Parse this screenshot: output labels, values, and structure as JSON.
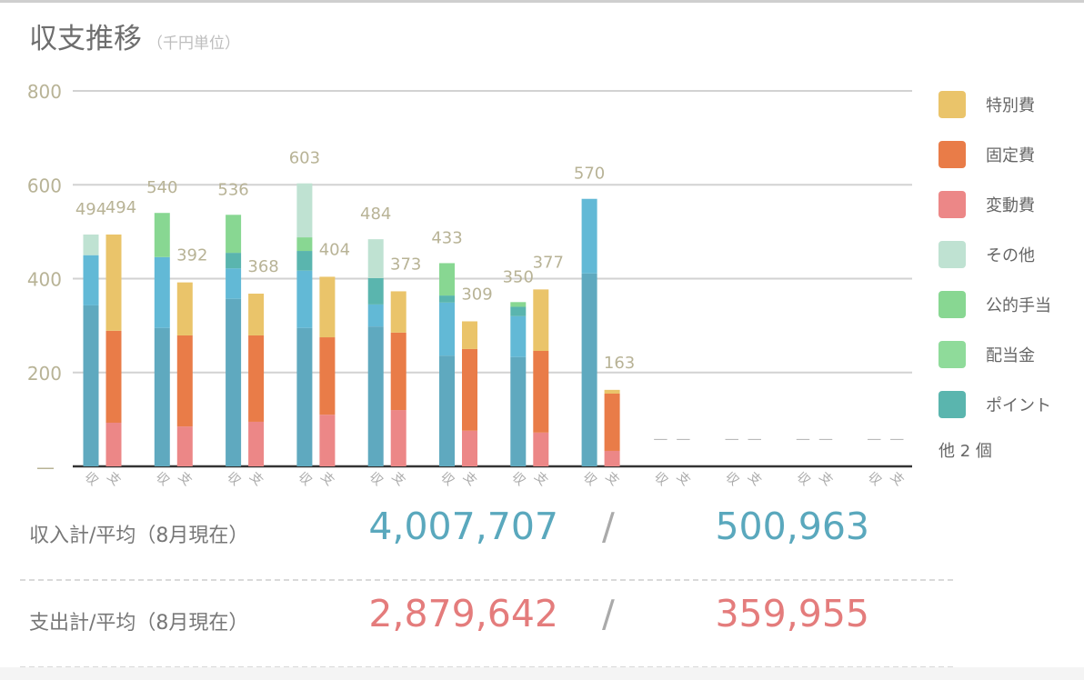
{
  "header": {
    "title": "収支推移",
    "unit": "（千円単位）"
  },
  "chart_data": {
    "type": "bar",
    "stacked": true,
    "ylim": [
      0,
      800
    ],
    "yticks": [
      "800",
      "600",
      "400",
      "200",
      "—"
    ],
    "ytick_values": [
      800,
      600,
      400,
      200,
      0
    ],
    "grid": true,
    "legend_position": "right",
    "category_labels": [
      "収",
      "支"
    ],
    "months_with_data": 8,
    "months_total": 12,
    "income_totals": [
      494,
      540,
      536,
      603,
      484,
      433,
      350,
      570
    ],
    "expense_totals": [
      494,
      392,
      368,
      404,
      373,
      309,
      377,
      163
    ],
    "income_series": [
      {
        "name": "",
        "color": "#5fa9bf",
        "values": [
          343,
          295,
          357,
          295,
          298,
          236,
          233,
          411
        ]
      },
      {
        "name": "",
        "color": "#62b9d6",
        "values": [
          107,
          151,
          65,
          122,
          47,
          113,
          87,
          159
        ]
      },
      {
        "name": "ポイント",
        "color": "#5ab5ae",
        "values": [
          0,
          0,
          33,
          42,
          56,
          15,
          20,
          0
        ]
      },
      {
        "name": "配当金",
        "color": "#8fdb9a",
        "values": [
          0,
          0,
          0,
          0,
          0,
          0,
          0,
          0
        ]
      },
      {
        "name": "公的手当",
        "color": "#88d792",
        "values": [
          0,
          94,
          81,
          29,
          0,
          69,
          10,
          0
        ]
      },
      {
        "name": "その他",
        "color": "#bfe2d2",
        "values": [
          44,
          0,
          0,
          115,
          83,
          0,
          0,
          0
        ]
      }
    ],
    "expense_series": [
      {
        "name": "変動費",
        "color": "#ec8787",
        "values": [
          93,
          85,
          95,
          110,
          120,
          76,
          72,
          33
        ]
      },
      {
        "name": "固定費",
        "color": "#e97c48",
        "values": [
          196,
          194,
          184,
          165,
          165,
          174,
          174,
          122
        ]
      },
      {
        "name": "特別費",
        "color": "#eac46a",
        "values": [
          205,
          113,
          89,
          129,
          88,
          59,
          131,
          8
        ]
      }
    ],
    "empty_placeholder": "—"
  },
  "legend": {
    "items": [
      {
        "label": "特別費",
        "color": "#eac46a"
      },
      {
        "label": "固定費",
        "color": "#e97c48"
      },
      {
        "label": "変動費",
        "color": "#ec8787"
      },
      {
        "label": "その他",
        "color": "#bfe2d2"
      },
      {
        "label": "公的手当",
        "color": "#88d792"
      },
      {
        "label": "配当金",
        "color": "#8fdb9a"
      },
      {
        "label": "ポイント",
        "color": "#5ab5ae"
      }
    ],
    "more": "他 2 個"
  },
  "summary": {
    "income": {
      "label": "収入計/平均（8月現在）",
      "total": "4,007,707",
      "sep": "/",
      "average": "500,963",
      "color": "#5aa8bd"
    },
    "expense": {
      "label": "支出計/平均（8月現在）",
      "total": "2,879,642",
      "sep": "/",
      "average": "359,955",
      "color": "#e47c7c"
    }
  }
}
